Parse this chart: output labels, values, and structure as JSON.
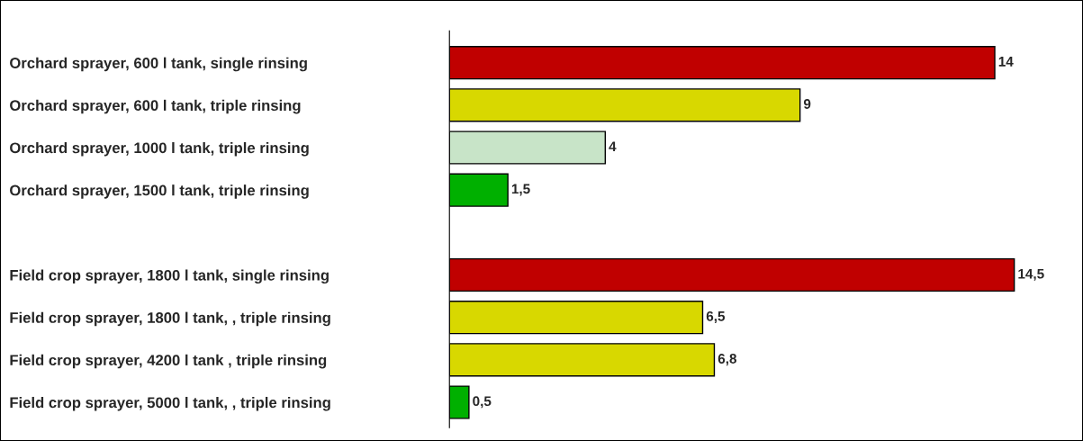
{
  "chart_data": {
    "type": "bar",
    "orientation": "horizontal",
    "categories": [
      "Orchard sprayer, 600 l tank, single rinsing",
      "Orchard sprayer, 600 l tank, triple rinsing",
      "Orchard sprayer, 1000 l tank, triple rinsing",
      "Orchard sprayer, 1500 l tank, triple rinsing",
      null,
      "Field crop sprayer, 1800 l tank, single rinsing",
      "Field crop sprayer, 1800 l tank, , triple rinsing",
      "Field crop sprayer, 4200 l tank , triple rinsing",
      "Field crop sprayer, 5000 l tank, , triple rinsing"
    ],
    "values": [
      14,
      9,
      4,
      1.5,
      null,
      14.5,
      6.5,
      6.8,
      0.5
    ],
    "value_labels": [
      "14",
      "9",
      "4",
      "1,5",
      null,
      "14,5",
      "6,5",
      "6,8",
      "0,5"
    ],
    "colors": [
      "#c00000",
      "#d8d800",
      "#c8e4c8",
      "#00b000",
      "#ffffff",
      "#c00000",
      "#d8d800",
      "#d8d800",
      "#00b000"
    ],
    "tick_labels": "y",
    "grid": false,
    "legend": false
  }
}
